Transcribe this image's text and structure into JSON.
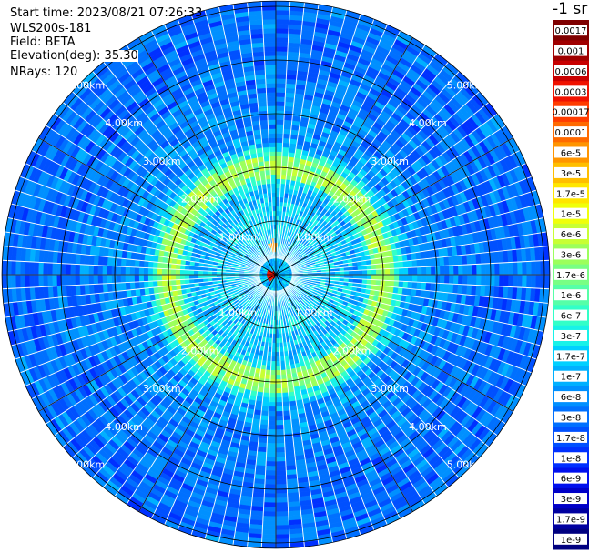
{
  "header": {
    "start_time": "Start time: 2023/08/21 07:26:33",
    "instrument": "WLS200s-181",
    "field": "Field: BETA",
    "elevation": "Elevation(deg): 35.30",
    "nrays": "NRays: 120"
  },
  "chart_data": {
    "type": "heatmap",
    "projection": "polar",
    "title": "",
    "unit_label": "-1 sr",
    "nrays": 120,
    "range_rings_km": [
      1.0,
      2.0,
      3.0,
      4.0,
      5.0
    ],
    "ring_labels": [
      "1.00km",
      "2.00km",
      "3.00km",
      "4.00km",
      "5.00km"
    ],
    "max_range_km": 5.1,
    "spokes": 12,
    "colorbar": {
      "scale": "log",
      "ticks": [
        "0.0017",
        "0.001",
        "0.0006",
        "0.0003",
        "0.00017",
        "0.0001",
        "6e-5",
        "3e-5",
        "1.7e-5",
        "1e-5",
        "6e-6",
        "3e-6",
        "1.7e-6",
        "1e-6",
        "6e-7",
        "3e-7",
        "1.7e-7",
        "1e-7",
        "6e-8",
        "3e-8",
        "1.7e-8",
        "1e-8",
        "6e-9",
        "3e-9",
        "1.7e-9",
        "1e-9"
      ],
      "colors": [
        "#7f0000",
        "#a00000",
        "#c80000",
        "#f01200",
        "#ff3c00",
        "#ff6a00",
        "#ff9500",
        "#ffbe00",
        "#ffe600",
        "#f0ff0a",
        "#c8ff34",
        "#9cff5c",
        "#78ff84",
        "#56ffa8",
        "#32ffc8",
        "#18f2e8",
        "#00d0ff",
        "#00b0ff",
        "#0090ff",
        "#0070ff",
        "#0050ff",
        "#0030ff",
        "#0010ee",
        "#0000c8",
        "#0000a0",
        "#000080"
      ]
    },
    "radial_profile_km": [
      {
        "r": 0.0,
        "value": "1e-7"
      },
      {
        "r": 1.0,
        "value": "1.7e-7"
      },
      {
        "r": 1.6,
        "value": "1e-7"
      },
      {
        "r": 2.0,
        "value": "3e-6"
      },
      {
        "r": 2.5,
        "value": "6e-8"
      },
      {
        "r": 4.0,
        "value": "3e-8"
      },
      {
        "r": 5.1,
        "value": "3e-8"
      }
    ],
    "hotspots": [
      {
        "azimuth_deg": 265,
        "range_km": 0.1,
        "value": "0.0003"
      },
      {
        "azimuth_deg": 355,
        "range_km": 0.55,
        "value": "6e-5"
      }
    ]
  }
}
